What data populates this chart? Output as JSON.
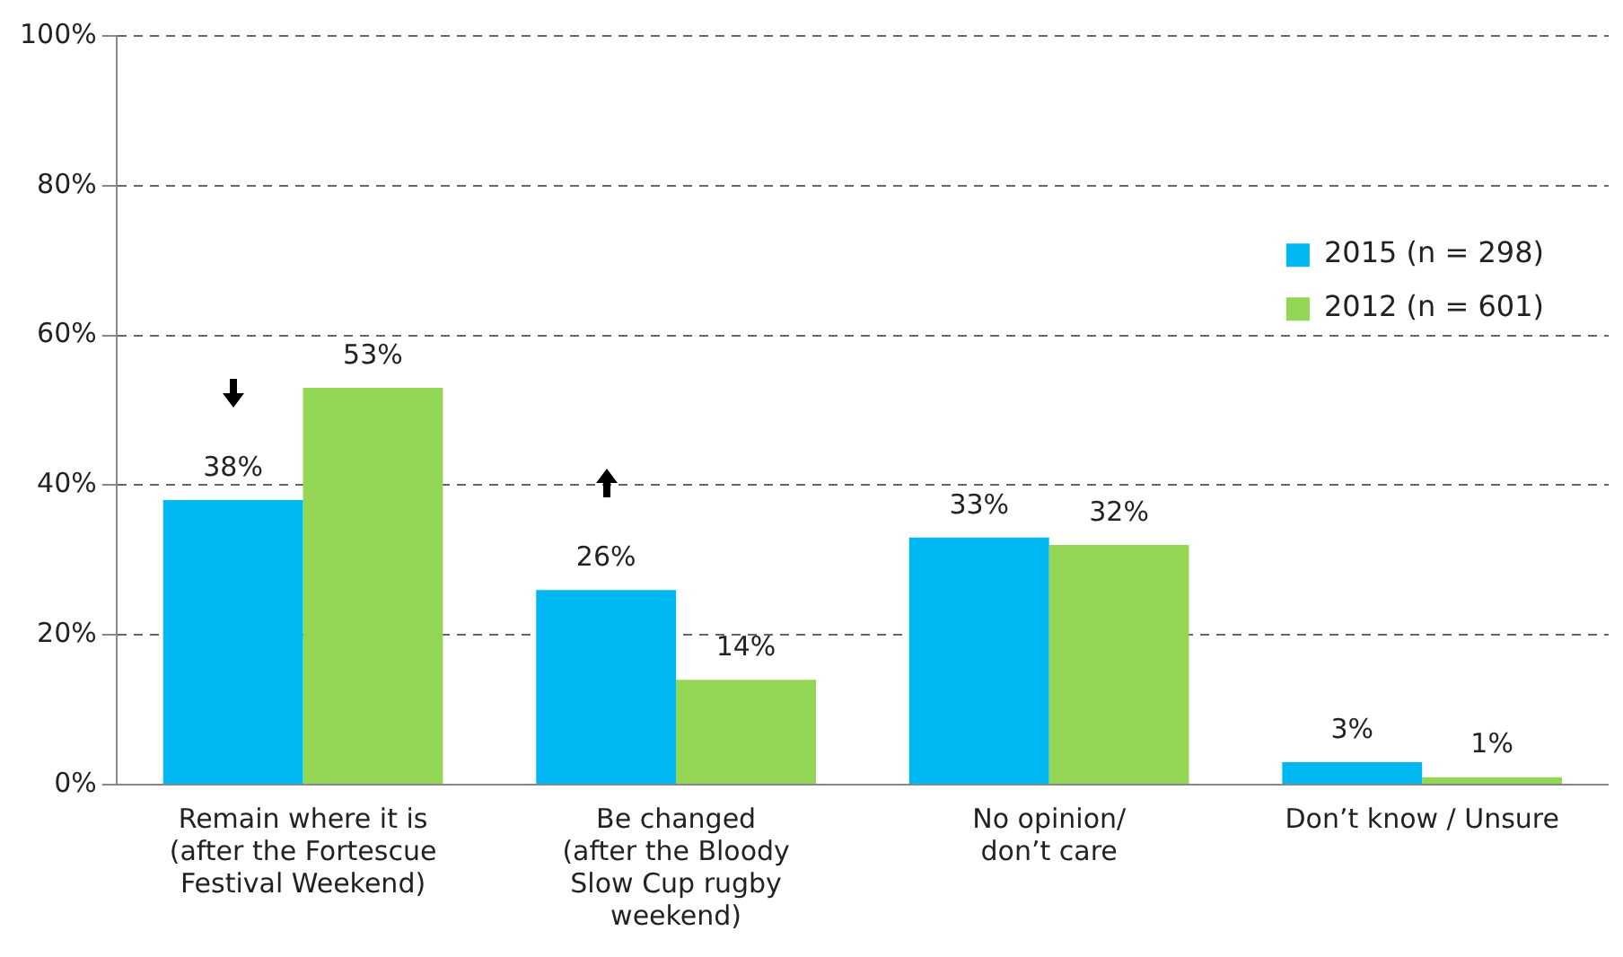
{
  "chart_data": {
    "type": "bar",
    "categories": [
      "Remain where it is\n(after the Fortescue\nFestival Weekend)",
      "Be changed\n(after the Bloody\nSlow Cup rugby\nweekend)",
      "No opinion/\ndon’t care",
      "Don’t know / Unsure"
    ],
    "series": [
      {
        "name": "2015 (n = 298)",
        "color": "#00b8f1",
        "values": [
          38,
          26,
          33,
          3
        ],
        "value_labels": [
          "38%",
          "26%",
          "33%",
          "3%"
        ]
      },
      {
        "name": "2012 (n = 601)",
        "color": "#92d654",
        "values": [
          53,
          14,
          32,
          1
        ],
        "value_labels": [
          "53%",
          "14%",
          "32%",
          "1%"
        ]
      }
    ],
    "ylim": [
      0,
      100
    ],
    "yticks": [
      {
        "value": 0,
        "label": "0%"
      },
      {
        "value": 20,
        "label": "20%"
      },
      {
        "value": 40,
        "label": "40%"
      },
      {
        "value": 60,
        "label": "60%"
      },
      {
        "value": 80,
        "label": "80%"
      },
      {
        "value": 100,
        "label": "100%"
      }
    ],
    "grid": "y",
    "legend": "top right"
  }
}
